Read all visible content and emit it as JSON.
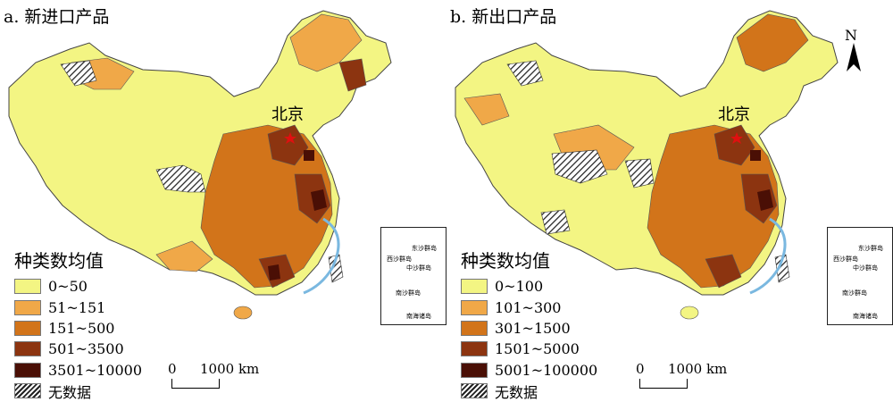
{
  "panels": [
    {
      "title": "a. 新进口产品",
      "legend_title": "种类数均值",
      "legend": [
        {
          "label": "0~50",
          "color": "#f3f583"
        },
        {
          "label": "51~151",
          "color": "#f0a848"
        },
        {
          "label": "151~500",
          "color": "#d2741a"
        },
        {
          "label": "501~3500",
          "color": "#8c3410"
        },
        {
          "label": "3501~10000",
          "color": "#4a0f05"
        },
        {
          "label": "无数据",
          "color": "hatch"
        }
      ]
    },
    {
      "title": "b. 新出口产品",
      "legend_title": "种类数均值",
      "legend": [
        {
          "label": "0~100",
          "color": "#f3f583"
        },
        {
          "label": "101~300",
          "color": "#f0a848"
        },
        {
          "label": "301~1500",
          "color": "#d2741a"
        },
        {
          "label": "1501~5000",
          "color": "#8c3410"
        },
        {
          "label": "5001~100000",
          "color": "#4a0f05"
        },
        {
          "label": "无数据",
          "color": "hatch"
        }
      ]
    }
  ],
  "capital_label": "北京",
  "scale": {
    "zero": "0",
    "distance": "1000 km"
  },
  "inset": {
    "island1": "东沙群岛",
    "island2": "西沙群岛",
    "island3": "中沙群岛",
    "island4": "南沙群岛",
    "title": "南海诸岛"
  },
  "north_label": "N"
}
